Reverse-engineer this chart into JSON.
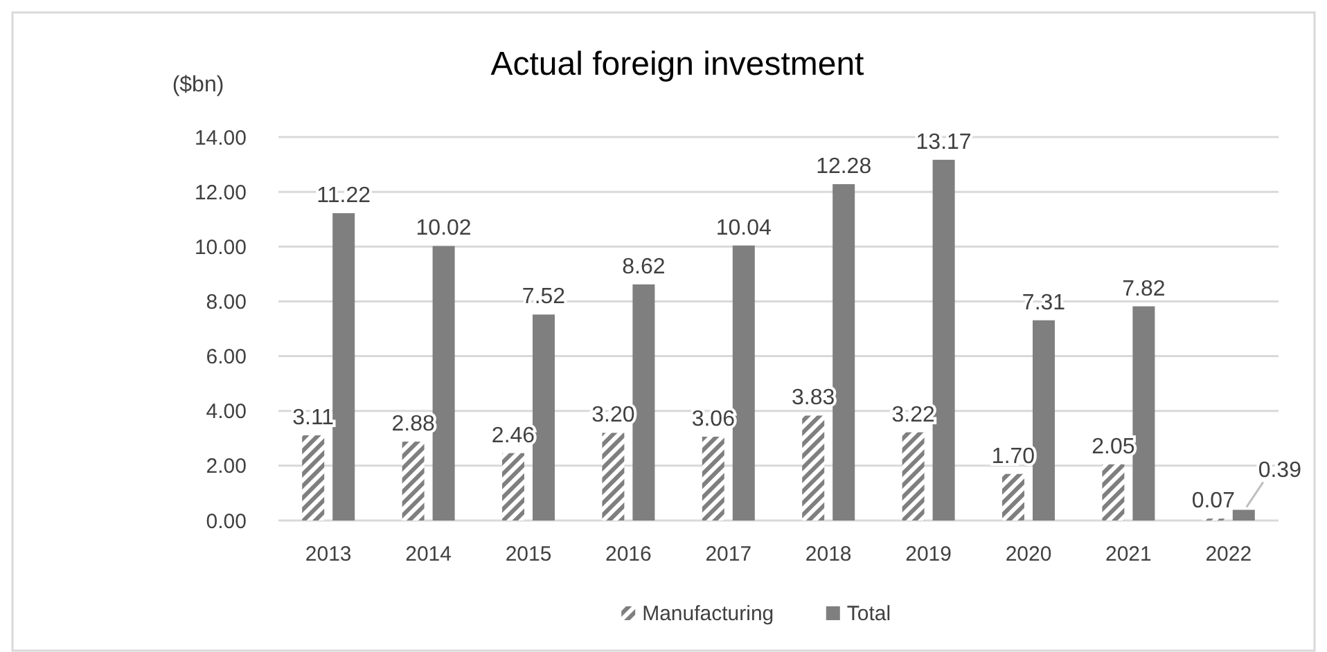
{
  "chart_data": {
    "type": "bar",
    "title": "Actual foreign investment",
    "ylabel": "($bn)",
    "categories": [
      "2013",
      "2014",
      "2015",
      "2016",
      "2017",
      "2018",
      "2019",
      "2020",
      "2021",
      "2022"
    ],
    "series": [
      {
        "name": "Manufacturing",
        "color": "#7f7f7f",
        "values": [
          3.11,
          2.88,
          2.46,
          3.2,
          3.06,
          3.83,
          3.22,
          1.7,
          2.05,
          0.07
        ]
      },
      {
        "name": "Total",
        "color": "#7f7f7f",
        "values": [
          11.22,
          10.02,
          7.52,
          8.62,
          10.04,
          12.28,
          13.17,
          7.31,
          7.82,
          0.39
        ]
      }
    ],
    "ylim": [
      0,
      14
    ],
    "yticks": [
      {
        "value": 0,
        "label": "0.00"
      },
      {
        "value": 2,
        "label": "2.00"
      },
      {
        "value": 4,
        "label": "4.00"
      },
      {
        "value": 6,
        "label": "6.00"
      },
      {
        "value": 8,
        "label": "8.00"
      },
      {
        "value": 10,
        "label": "10.00"
      },
      {
        "value": 12,
        "label": "12.00"
      },
      {
        "value": 14,
        "label": "14.00"
      }
    ],
    "grid": "y",
    "legend": "bottom",
    "value_labels": [
      [
        "3.11",
        "2.88",
        "2.46",
        "3.20",
        "3.06",
        "3.83",
        "3.22",
        "1.70",
        "2.05",
        "0.07"
      ],
      [
        "11.22",
        "10.02",
        "7.52",
        "8.62",
        "10.04",
        "12.28",
        "13.17",
        "7.31",
        "7.82",
        "0.39"
      ]
    ]
  }
}
